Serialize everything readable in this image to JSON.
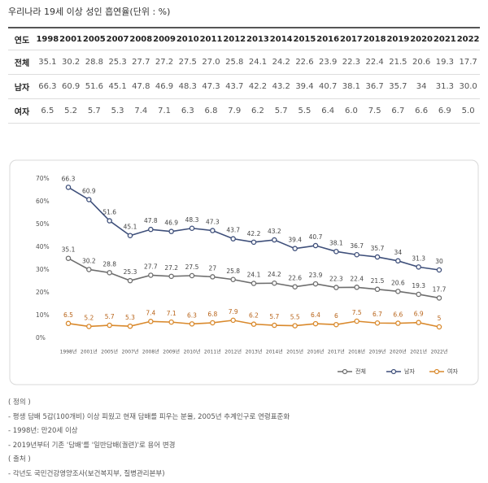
{
  "header": {
    "title": "우리나라 19세 이상 성인 흡연율(단위 : %)"
  },
  "table": {
    "columns": [
      "연도",
      "1998",
      "2001",
      "2005",
      "2007",
      "2008",
      "2009",
      "2010",
      "2011",
      "2012",
      "2013",
      "2014",
      "2015",
      "2016",
      "2017",
      "2018",
      "2019",
      "2020",
      "2021",
      "2022"
    ],
    "rows": [
      [
        "전체",
        "35.1",
        "30.2",
        "28.8",
        "25.3",
        "27.7",
        "27.2",
        "27.5",
        "27.0",
        "25.8",
        "24.1",
        "24.2",
        "22.6",
        "23.9",
        "22.3",
        "22.4",
        "21.5",
        "20.6",
        "19.3",
        "17.7"
      ],
      [
        "남자",
        "66.3",
        "60.9",
        "51.6",
        "45.1",
        "47.8",
        "46.9",
        "48.3",
        "47.3",
        "43.7",
        "42.2",
        "43.2",
        "39.4",
        "40.7",
        "38.1",
        "36.7",
        "35.7",
        "34",
        "31.3",
        "30.0"
      ],
      [
        "여자",
        "6.5",
        "5.2",
        "5.7",
        "5.3",
        "7.4",
        "7.1",
        "6.3",
        "6.8",
        "7.9",
        "6.2",
        "5.7",
        "5.5",
        "6.4",
        "6.0",
        "7.5",
        "6.7",
        "6.6",
        "6.9",
        "5.0"
      ]
    ]
  },
  "chart_data": {
    "type": "line",
    "categories": [
      "1998년",
      "2001년",
      "2005년",
      "2007년",
      "2008년",
      "2009년",
      "2010년",
      "2011년",
      "2012년",
      "2013년",
      "2014년",
      "2015년",
      "2016년",
      "2017년",
      "2018년",
      "2019년",
      "2020년",
      "2021년",
      "2022년"
    ],
    "series": [
      {
        "name": "전체",
        "color": "#6e6e6e",
        "values": [
          35.1,
          30.2,
          28.8,
          25.3,
          27.7,
          27.2,
          27.5,
          27,
          25.8,
          24.1,
          24.2,
          22.6,
          23.9,
          22.3,
          22.4,
          21.5,
          20.6,
          19.3,
          17.7
        ]
      },
      {
        "name": "남자",
        "color": "#3e4f7a",
        "values": [
          66.3,
          60.9,
          51.6,
          45.1,
          47.8,
          46.9,
          48.3,
          47.3,
          43.7,
          42.2,
          43.2,
          39.4,
          40.7,
          38.1,
          36.7,
          35.7,
          34,
          31.3,
          30
        ]
      },
      {
        "name": "여자",
        "color": "#d9892c",
        "values": [
          6.5,
          5.2,
          5.7,
          5.3,
          7.4,
          7.1,
          6.3,
          6.8,
          7.9,
          6.2,
          5.7,
          5.5,
          6.4,
          6,
          7.5,
          6.7,
          6.6,
          6.9,
          5
        ]
      }
    ],
    "ylim": [
      0,
      70
    ],
    "yticks": [
      {
        "value": 0,
        "label": "0%"
      },
      {
        "value": 10,
        "label": "10%"
      },
      {
        "value": 20,
        "label": "20%"
      },
      {
        "value": 30,
        "label": "30%"
      },
      {
        "value": 40,
        "label": "40%"
      },
      {
        "value": 50,
        "label": "50%"
      },
      {
        "value": 60,
        "label": "60%"
      },
      {
        "value": 70,
        "label": "70%"
      }
    ],
    "grid": false,
    "legend": "bottom-right"
  },
  "notes": [
    "( 정의 )",
    "- 평생 담배 5갑(100개비) 이상 피웠고 현재 담배를 피우는 분율, 2005년 추계인구로 연령표준화",
    "- 1998년: 만20세 이상",
    "- 2019년부터 기존 '담배'를 '일반담배(궐련)'로 용어 변경",
    "( 출처 )",
    "- 각년도 국민건강영양조사(보건복지부, 질병관리본부)"
  ]
}
